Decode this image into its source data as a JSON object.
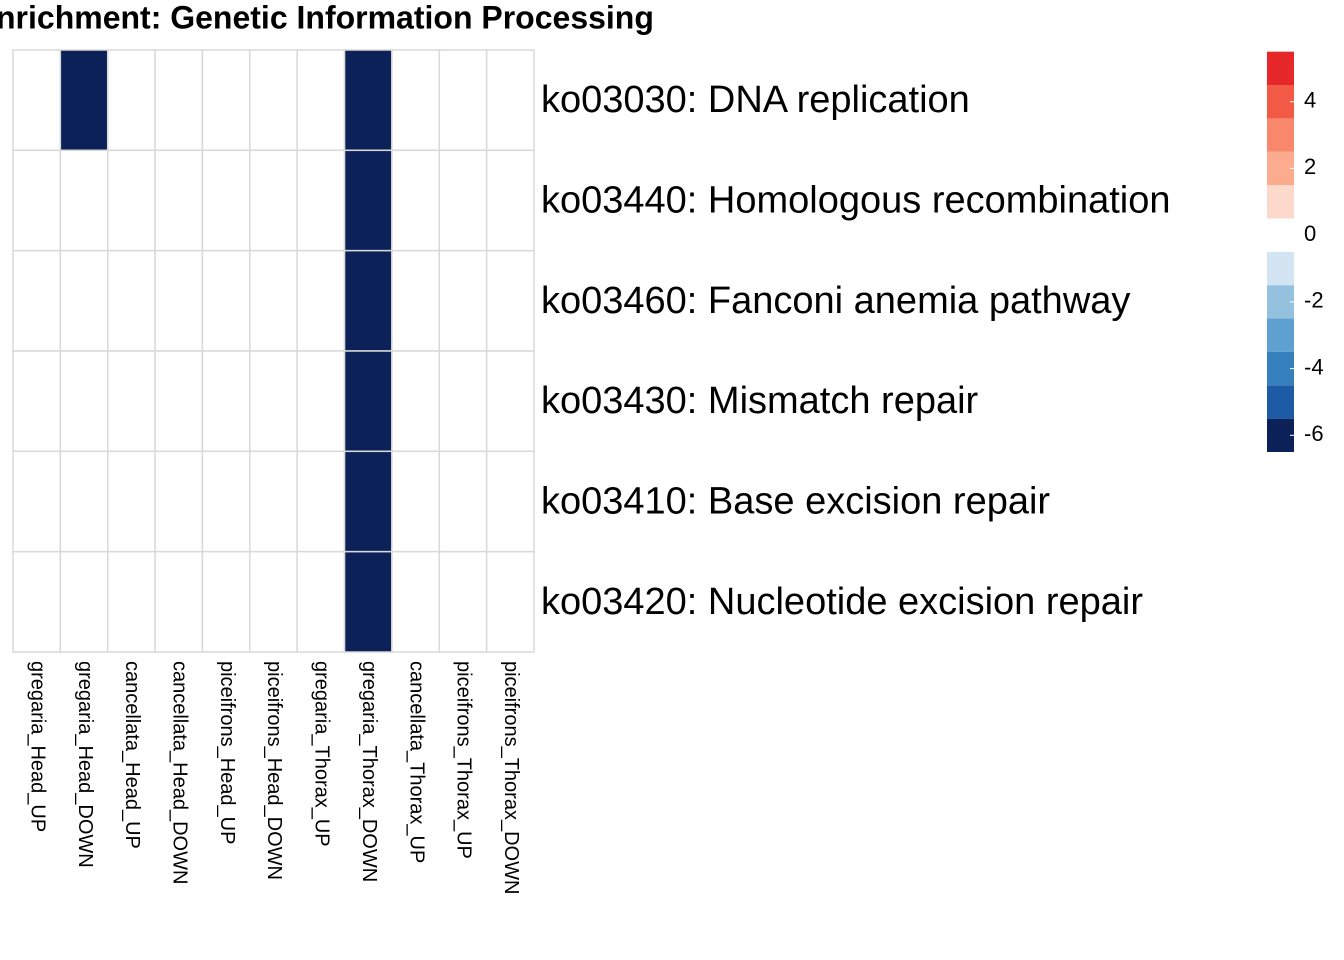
{
  "chart_data": {
    "type": "heatmap",
    "title": "nrichment: Genetic Information Processing",
    "rows": [
      "ko03030: DNA replication",
      "ko03440: Homologous recombination",
      "ko03460: Fanconi anemia pathway",
      "ko03430: Mismatch repair",
      "ko03410: Base excision repair",
      "ko03420: Nucleotide excision repair"
    ],
    "columns": [
      "gregaria_Head_UP",
      "gregaria_Head_DOWN",
      "cancellata_Head_UP",
      "cancellata_Head_DOWN",
      "piceifrons_Head_UP",
      "piceifrons_Head_DOWN",
      "gregaria_Thorax_UP",
      "gregaria_Thorax_DOWN",
      "cancellata_Thorax_UP",
      "piceifrons_Thorax_UP",
      "piceifrons_Thorax_DOWN"
    ],
    "values": [
      [
        0,
        -6,
        0,
        0,
        0,
        0,
        0,
        -6,
        0,
        0,
        0
      ],
      [
        0,
        0,
        0,
        0,
        0,
        0,
        0,
        -6,
        0,
        0,
        0
      ],
      [
        0,
        0,
        0,
        0,
        0,
        0,
        0,
        -6,
        0,
        0,
        0
      ],
      [
        0,
        0,
        0,
        0,
        0,
        0,
        0,
        -6,
        0,
        0,
        0
      ],
      [
        0,
        0,
        0,
        0,
        0,
        0,
        0,
        -6,
        0,
        0,
        0
      ],
      [
        0,
        0,
        0,
        0,
        0,
        0,
        0,
        -6,
        0,
        0,
        0
      ]
    ],
    "clim": [
      -6.5,
      5.55
    ],
    "colors": [
      "#0c2157",
      "#1d5ba6",
      "#3580bd",
      "#5ea0cf",
      "#93c1de",
      "#d3e5f2",
      "#ffffff",
      "#fdd9cb",
      "#fbab8e",
      "#f8876c",
      "#f35a45",
      "#e6282a"
    ],
    "cticks": [
      4,
      2,
      0,
      -2,
      -4,
      -6
    ],
    "grid_color": "#d9d9d9"
  }
}
